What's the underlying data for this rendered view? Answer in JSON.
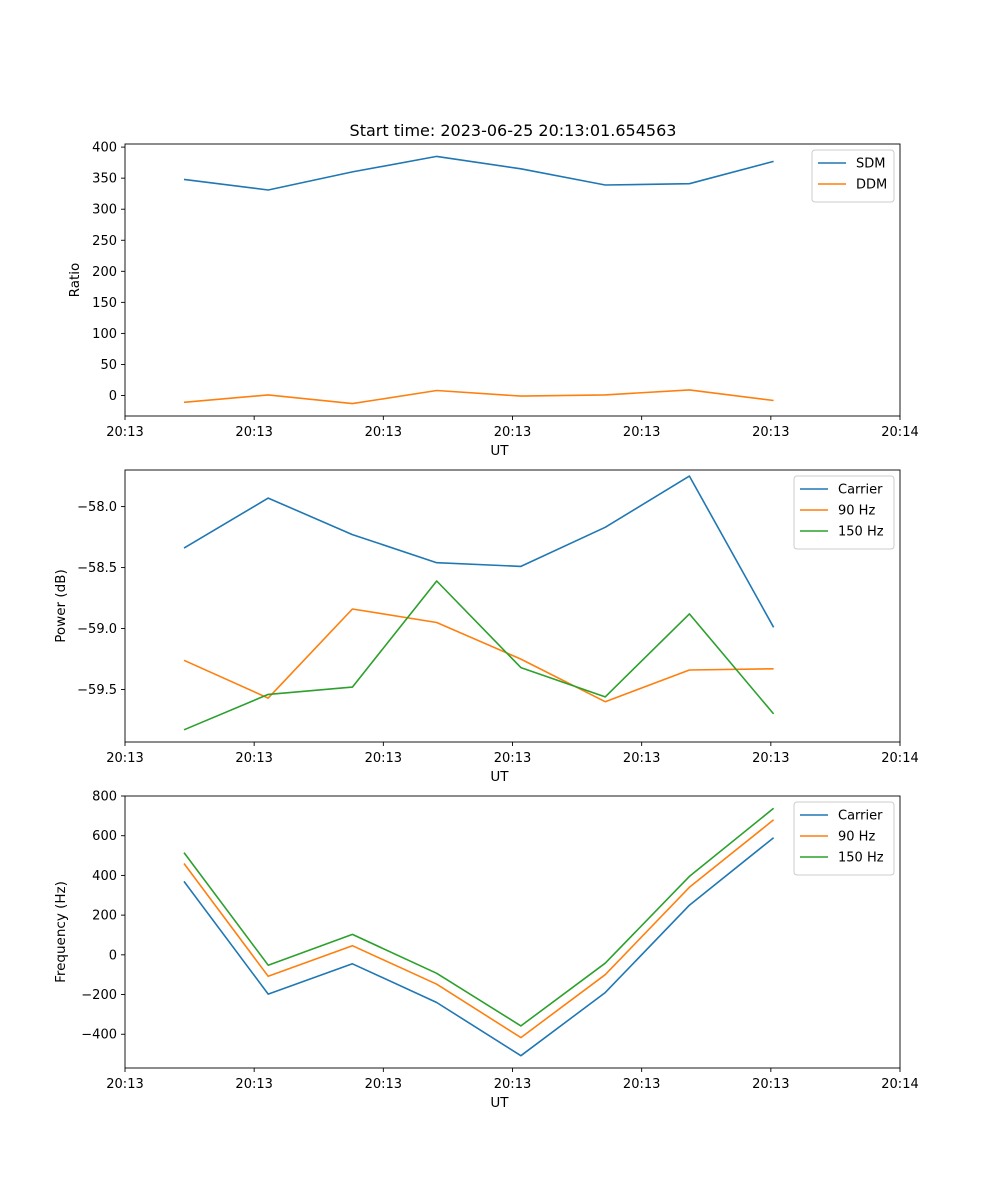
{
  "figure": {
    "title": "Start time: 2023-06-25 20:13:01.654563"
  },
  "chart_data": [
    {
      "type": "line",
      "title": "Start time: 2023-06-25 20:13:01.654563",
      "xlabel": "UT",
      "ylabel": "Ratio",
      "x_tick_labels": [
        "20:13",
        "20:13",
        "20:13",
        "20:13",
        "20:13",
        "20:13",
        "20:14"
      ],
      "xlim": [
        -0.5,
        8.7
      ],
      "x": [
        0.2,
        1.2,
        2.2,
        3.2,
        4.2,
        5.2,
        6.2,
        7.2
      ],
      "ylim": [
        -33,
        405
      ],
      "yticks": [
        0,
        50,
        100,
        150,
        200,
        250,
        300,
        350,
        400
      ],
      "legend_position": "top-right",
      "grid": false,
      "series": [
        {
          "name": "SDM",
          "color": "#1f77b4",
          "values": [
            348,
            331,
            360,
            385,
            365,
            339,
            341,
            377
          ]
        },
        {
          "name": "DDM",
          "color": "#ff7f0e",
          "values": [
            -11,
            1,
            -13,
            8,
            -1,
            1,
            9,
            -8
          ]
        }
      ]
    },
    {
      "type": "line",
      "xlabel": "UT",
      "ylabel": "Power (dB)",
      "x_tick_labels": [
        "20:13",
        "20:13",
        "20:13",
        "20:13",
        "20:13",
        "20:13",
        "20:14"
      ],
      "xlim": [
        -0.5,
        8.7
      ],
      "x": [
        0.2,
        1.2,
        2.2,
        3.2,
        4.2,
        5.2,
        6.2,
        7.2
      ],
      "ylim": [
        -59.93,
        -57.7
      ],
      "yticks": [
        -59.5,
        -59.0,
        -58.5,
        -58.0
      ],
      "legend_position": "top-right",
      "grid": false,
      "series": [
        {
          "name": "Carrier",
          "color": "#1f77b4",
          "values": [
            -58.34,
            -57.93,
            -58.23,
            -58.46,
            -58.49,
            -58.17,
            -57.75,
            -58.99
          ]
        },
        {
          "name": "90 Hz",
          "color": "#ff7f0e",
          "values": [
            -59.26,
            -59.57,
            -58.84,
            -58.95,
            -59.25,
            -59.6,
            -59.34,
            -59.33
          ]
        },
        {
          "name": "150 Hz",
          "color": "#2ca02c",
          "values": [
            -59.83,
            -59.54,
            -59.48,
            -58.61,
            -59.32,
            -59.56,
            -58.88,
            -59.7
          ]
        }
      ]
    },
    {
      "type": "line",
      "xlabel": "UT",
      "ylabel": "Frequency (Hz)",
      "x_tick_labels": [
        "20:13",
        "20:13",
        "20:13",
        "20:13",
        "20:13",
        "20:13",
        "20:14"
      ],
      "xlim": [
        -0.5,
        8.7
      ],
      "x": [
        0.2,
        1.2,
        2.2,
        3.2,
        4.2,
        5.2,
        6.2,
        7.2
      ],
      "ylim": [
        -570,
        800
      ],
      "yticks": [
        -400,
        -200,
        0,
        200,
        400,
        600,
        800
      ],
      "legend_position": "top-right",
      "grid": false,
      "series": [
        {
          "name": "Carrier",
          "color": "#1f77b4",
          "values": [
            370,
            -198,
            -45,
            -240,
            -508,
            -190,
            250,
            590
          ]
        },
        {
          "name": "90 Hz",
          "color": "#ff7f0e",
          "values": [
            460,
            -108,
            46,
            -148,
            -417,
            -100,
            340,
            680
          ]
        },
        {
          "name": "150 Hz",
          "color": "#2ca02c",
          "values": [
            515,
            -52,
            103,
            -93,
            -358,
            -42,
            395,
            738
          ]
        }
      ]
    }
  ]
}
